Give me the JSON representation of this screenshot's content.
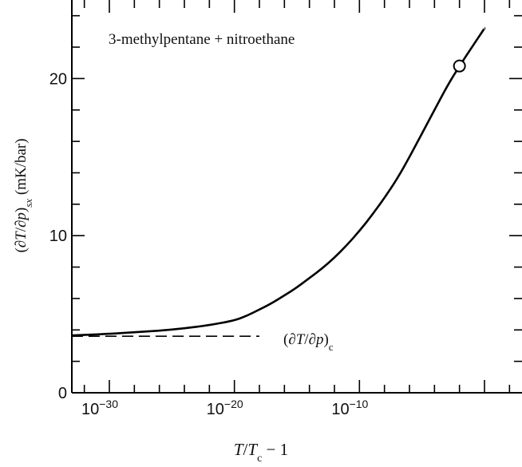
{
  "chart_data": {
    "type": "line",
    "title": "3-methylpentane + nitroethane",
    "xlabel": "T/T_c − 1",
    "ylabel": "(∂T/∂p)_sx (mK/bar)",
    "x_scale": "log",
    "xlim": [
      1e-33,
      1000.0
    ],
    "ylim": [
      0,
      25
    ],
    "x_ticks": [
      {
        "base": "10",
        "exp": "−30",
        "value": 1e-30
      },
      {
        "base": "10",
        "exp": "−20",
        "value": 1e-20
      },
      {
        "base": "10",
        "exp": "−10",
        "value": 1e-10
      }
    ],
    "y_ticks": [
      {
        "label": "0",
        "value": 0
      },
      {
        "label": "10",
        "value": 10
      },
      {
        "label": "20",
        "value": 20
      }
    ],
    "series": [
      {
        "style": "solid",
        "color": "#000000",
        "x": [
          1e-33,
          1e-30,
          1e-28,
          1e-26,
          1e-24,
          1e-22,
          1e-20,
          1e-19,
          1e-18,
          1e-17,
          1e-16,
          1e-15,
          1e-14,
          1e-13,
          1e-12,
          1e-11,
          1e-10,
          1e-09,
          1e-08,
          1e-07,
          1e-06,
          1e-05,
          0.0001,
          0.001,
          0.01,
          0.1,
          1
        ],
        "y": [
          3.65,
          3.75,
          3.85,
          3.95,
          4.1,
          4.3,
          4.6,
          4.9,
          5.3,
          5.7,
          6.2,
          6.7,
          7.3,
          7.9,
          8.6,
          9.4,
          10.3,
          11.3,
          12.4,
          13.6,
          15.0,
          16.5,
          18.0,
          19.5,
          20.8,
          22.0,
          23.2
        ]
      },
      {
        "name": "(∂T/∂p)_c",
        "style": "dashed",
        "color": "#000000",
        "x": [
          1e-33,
          1e-18
        ],
        "y": [
          3.6,
          3.6
        ]
      }
    ],
    "markers": [
      {
        "shape": "open-circle",
        "x": 0.01,
        "y": 20.8
      }
    ],
    "annotations": [
      {
        "text": "(∂T/∂p)_c",
        "x": 1e-17,
        "y": 3.6
      }
    ]
  }
}
